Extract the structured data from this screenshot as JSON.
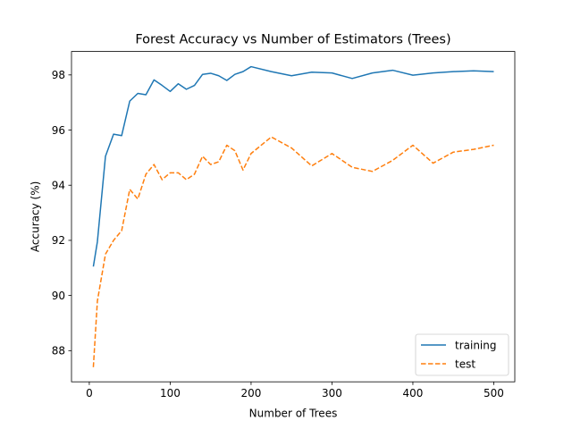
{
  "chart_data": {
    "type": "line",
    "title": "Forest Accuracy vs Number of Estimators (Trees)",
    "xlabel": "Number of Trees",
    "ylabel": "Accuracy (%)",
    "xlim": [
      -22,
      526
    ],
    "ylim": [
      86.87,
      98.85
    ],
    "xticks": [
      0,
      100,
      200,
      300,
      400,
      500
    ],
    "yticks": [
      88,
      90,
      92,
      94,
      96,
      98
    ],
    "grid": false,
    "legend_position": "lower-right",
    "series": [
      {
        "name": "training",
        "color": "#1f77b4",
        "dash": "solid",
        "x": [
          5,
          10,
          20,
          30,
          40,
          50,
          60,
          70,
          80,
          90,
          100,
          110,
          120,
          130,
          140,
          150,
          160,
          170,
          180,
          190,
          200,
          225,
          250,
          275,
          300,
          325,
          350,
          375,
          400,
          425,
          450,
          475,
          500
        ],
        "y": [
          91.05,
          91.95,
          95.05,
          95.85,
          95.8,
          97.05,
          97.33,
          97.28,
          97.82,
          97.62,
          97.4,
          97.68,
          97.48,
          97.62,
          98.02,
          98.06,
          97.97,
          97.8,
          98.02,
          98.12,
          98.3,
          98.12,
          97.97,
          98.1,
          98.07,
          97.87,
          98.07,
          98.17,
          97.99,
          98.07,
          98.12,
          98.15,
          98.12
        ]
      },
      {
        "name": "test",
        "color": "#ff7f0e",
        "dash": "dashed",
        "x": [
          5,
          10,
          20,
          30,
          40,
          50,
          60,
          70,
          80,
          90,
          100,
          110,
          120,
          130,
          140,
          150,
          160,
          170,
          180,
          190,
          200,
          225,
          250,
          275,
          300,
          325,
          350,
          375,
          400,
          425,
          450,
          475,
          500
        ],
        "y": [
          87.4,
          89.8,
          91.5,
          92.0,
          92.35,
          93.85,
          93.5,
          94.4,
          94.75,
          94.2,
          94.45,
          94.45,
          94.2,
          94.4,
          95.05,
          94.75,
          94.85,
          95.45,
          95.25,
          94.55,
          95.15,
          95.75,
          95.35,
          94.7,
          95.15,
          94.65,
          94.5,
          94.9,
          95.45,
          94.8,
          95.2,
          95.3,
          95.45
        ]
      }
    ]
  }
}
